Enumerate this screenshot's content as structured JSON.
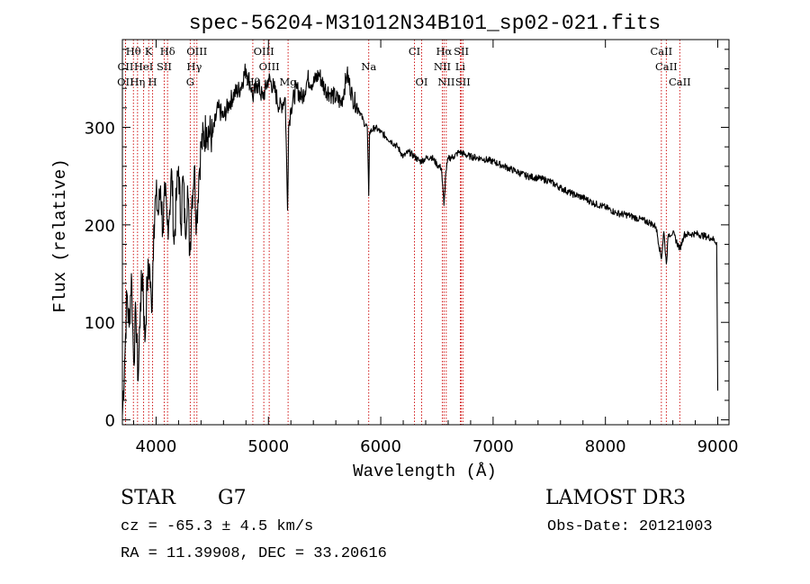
{
  "chart_data": {
    "type": "line",
    "title": "spec-56204-M31012N34B101_sp02-021.fits",
    "xlabel": "Wavelength (Å)",
    "ylabel": "Flux (relative)",
    "xlim": [
      3700,
      9100
    ],
    "ylim": [
      -5,
      390
    ],
    "xticks": [
      4000,
      5000,
      6000,
      7000,
      8000,
      9000
    ],
    "yticks": [
      0,
      100,
      200,
      300
    ],
    "series": [
      {
        "name": "flux",
        "x": [
          3700,
          3720,
          3740,
          3760,
          3780,
          3800,
          3820,
          3840,
          3860,
          3880,
          3900,
          3920,
          3940,
          3960,
          3980,
          4000,
          4020,
          4040,
          4060,
          4080,
          4100,
          4120,
          4140,
          4160,
          4180,
          4200,
          4220,
          4240,
          4260,
          4280,
          4300,
          4320,
          4340,
          4360,
          4380,
          4400,
          4450,
          4500,
          4550,
          4600,
          4650,
          4700,
          4750,
          4800,
          4850,
          4860,
          4900,
          4950,
          5000,
          5050,
          5100,
          5150,
          5170,
          5180,
          5200,
          5250,
          5300,
          5350,
          5400,
          5450,
          5500,
          5550,
          5600,
          5650,
          5700,
          5750,
          5800,
          5850,
          5880,
          5893,
          5900,
          5950,
          6000,
          6050,
          6100,
          6150,
          6200,
          6250,
          6300,
          6350,
          6400,
          6450,
          6500,
          6540,
          6563,
          6580,
          6600,
          6650,
          6700,
          6750,
          6800,
          6900,
          7000,
          7100,
          7200,
          7300,
          7400,
          7500,
          7600,
          7700,
          7800,
          7900,
          8000,
          8100,
          8200,
          8300,
          8400,
          8450,
          8498,
          8520,
          8542,
          8560,
          8600,
          8662,
          8700,
          8800,
          8900,
          8950,
          8990,
          9000
        ],
        "y": [
          5,
          60,
          130,
          95,
          150,
          60,
          110,
          40,
          120,
          150,
          80,
          140,
          160,
          110,
          200,
          230,
          210,
          240,
          195,
          230,
          200,
          215,
          255,
          180,
          225,
          260,
          200,
          250,
          190,
          240,
          170,
          230,
          260,
          200,
          250,
          280,
          300,
          290,
          320,
          310,
          325,
          335,
          340,
          360,
          340,
          330,
          345,
          330,
          350,
          340,
          320,
          330,
          215,
          300,
          320,
          340,
          330,
          350,
          345,
          355,
          340,
          335,
          330,
          325,
          355,
          330,
          320,
          305,
          300,
          230,
          295,
          300,
          295,
          290,
          285,
          280,
          270,
          275,
          270,
          265,
          268,
          270,
          262,
          258,
          220,
          255,
          268,
          270,
          275,
          272,
          270,
          268,
          265,
          260,
          255,
          250,
          248,
          245,
          238,
          232,
          228,
          222,
          218,
          212,
          210,
          206,
          202,
          198,
          165,
          193,
          160,
          190,
          192,
          175,
          190,
          191,
          188,
          186,
          182,
          30
        ]
      }
    ],
    "lines": [
      {
        "label": "Hθ",
        "x": 3798,
        "row": 1
      },
      {
        "label": "K",
        "x": 3934,
        "row": 1
      },
      {
        "label": "Hδ",
        "x": 4102,
        "row": 1
      },
      {
        "label": "OIII",
        "x": 4363,
        "row": 1
      },
      {
        "label": "OIII",
        "x": 4959,
        "row": 1
      },
      {
        "label": "CI",
        "x": 6300,
        "row": 1
      },
      {
        "label": "Hα",
        "x": 6563,
        "row": 1
      },
      {
        "label": "SII",
        "x": 6717,
        "row": 1
      },
      {
        "label": "CaII",
        "x": 8498,
        "row": 1
      },
      {
        "label": "CII",
        "x": 3728,
        "row": 2
      },
      {
        "label": "HeI",
        "x": 3889,
        "row": 2
      },
      {
        "label": "SII",
        "x": 4072,
        "row": 2
      },
      {
        "label": "Hγ",
        "x": 4340,
        "row": 2
      },
      {
        "label": "OIII",
        "x": 5007,
        "row": 2
      },
      {
        "label": "Na",
        "x": 5893,
        "row": 2
      },
      {
        "label": "NII",
        "x": 6548,
        "row": 2
      },
      {
        "label": "Li",
        "x": 6708,
        "row": 2
      },
      {
        "label": "CaII",
        "x": 8542,
        "row": 2
      },
      {
        "label": "OII",
        "x": 3727,
        "row": 3
      },
      {
        "label": "Hη",
        "x": 3835,
        "row": 3
      },
      {
        "label": "H",
        "x": 3969,
        "row": 3
      },
      {
        "label": "G",
        "x": 4304,
        "row": 3
      },
      {
        "label": "Hβ",
        "x": 4861,
        "row": 3
      },
      {
        "label": "Mg",
        "x": 5175,
        "row": 3
      },
      {
        "label": "OI",
        "x": 6364,
        "row": 3
      },
      {
        "label": "NII",
        "x": 6583,
        "row": 3
      },
      {
        "label": "SII",
        "x": 6731,
        "row": 3
      },
      {
        "label": "CaII",
        "x": 8662,
        "row": 3
      }
    ]
  },
  "info": {
    "class_label": "STAR",
    "subclass": "G7",
    "cz": "cz = -65.3 ± 4.5 km/s",
    "radec": "RA =  11.39908, DEC =  33.20616",
    "survey": "LAMOST DR3",
    "obsdate": "Obs-Date: 20121003"
  }
}
